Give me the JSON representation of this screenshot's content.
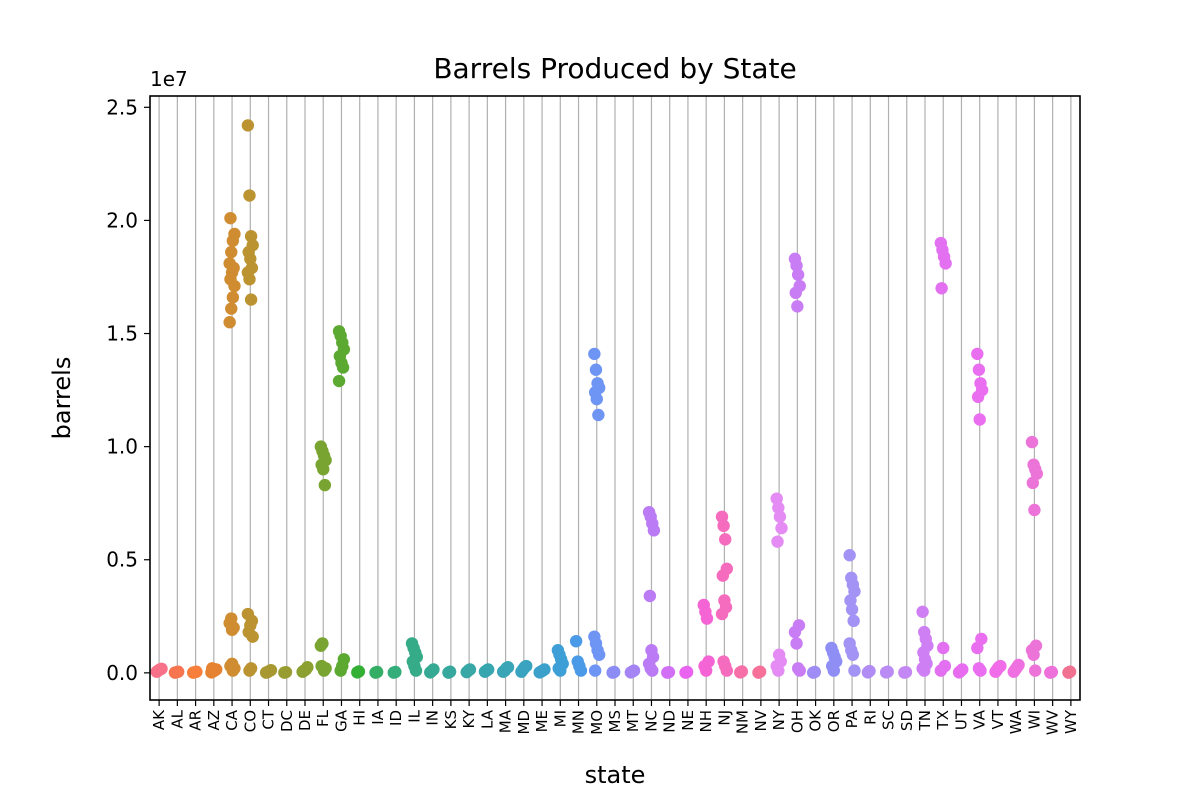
{
  "chart_data": {
    "type": "scatter",
    "title": "Barrels Produced by State",
    "xlabel": "state",
    "ylabel": "barrels",
    "y_offset_label": "1e7",
    "ylim": [
      -1200000,
      25500000
    ],
    "yticks": [
      0,
      5000000,
      10000000,
      15000000,
      20000000,
      25000000
    ],
    "ytick_labels": [
      "0.0",
      "0.5",
      "1.0",
      "1.5",
      "2.0",
      "2.5"
    ],
    "grid": "x-only",
    "categories": [
      "AK",
      "AL",
      "AR",
      "AZ",
      "CA",
      "CO",
      "CT",
      "DC",
      "DE",
      "FL",
      "GA",
      "HI",
      "IA",
      "ID",
      "IL",
      "IN",
      "KS",
      "KY",
      "LA",
      "MA",
      "MD",
      "ME",
      "MI",
      "MN",
      "MO",
      "MS",
      "MT",
      "NC",
      "ND",
      "NE",
      "NH",
      "NJ",
      "NM",
      "NV",
      "NY",
      "OH",
      "OK",
      "OR",
      "PA",
      "RI",
      "SC",
      "SD",
      "TN",
      "TX",
      "UT",
      "VA",
      "VT",
      "WA",
      "WI",
      "WV",
      "WY"
    ],
    "colors": [
      "#f77189",
      "#f7754f",
      "#f77f3b",
      "#e68332",
      "#d08c31",
      "#bb9331",
      "#a79831",
      "#999c31",
      "#8ba031",
      "#79a432",
      "#5ca932",
      "#33b034",
      "#34ae64",
      "#35ad7a",
      "#36ab88",
      "#36a994",
      "#37a89d",
      "#38a7a6",
      "#38a6ae",
      "#39a5b6",
      "#3aa3c0",
      "#3ba1ca",
      "#3d9fd6",
      "#4b9ae8",
      "#6e94f4",
      "#8c8df4",
      "#a584f4",
      "#bb7bf4",
      "#d170f4",
      "#ea63f0",
      "#f564d4",
      "#f56bbd",
      "#f66fa8",
      "#f77099",
      "#e48cf4",
      "#c97df4",
      "#9f8cf4",
      "#8f8ef4",
      "#a393f4",
      "#b08cf4",
      "#ba8bf4",
      "#c488f4",
      "#cf7ff4",
      "#e36ff1",
      "#e86cf0",
      "#ea6ef0",
      "#f06ce8",
      "#ef70e0",
      "#ec74d8",
      "#ee70da",
      "#f17190"
    ],
    "series": [
      {
        "name": "AK",
        "values": [
          50000,
          100000,
          150000,
          180000
        ]
      },
      {
        "name": "AL",
        "values": [
          10000,
          30000,
          50000
        ]
      },
      {
        "name": "AR",
        "values": [
          10000,
          30000,
          50000
        ]
      },
      {
        "name": "AZ",
        "values": [
          20000,
          60000,
          100000,
          150000,
          200000
        ]
      },
      {
        "name": "CA",
        "values": [
          15500000,
          16100000,
          16600000,
          17100000,
          17400000,
          17700000,
          17900000,
          18100000,
          18600000,
          19100000,
          19400000,
          20100000,
          1900000,
          2000000,
          2200000,
          2400000,
          100000,
          200000,
          300000,
          400000
        ]
      },
      {
        "name": "CO",
        "values": [
          24200000,
          21100000,
          19300000,
          18900000,
          18600000,
          18300000,
          17900000,
          17700000,
          17400000,
          16500000,
          1600000,
          1800000,
          2100000,
          2300000,
          2600000,
          100000,
          200000
        ]
      },
      {
        "name": "CT",
        "values": [
          10000,
          40000,
          80000,
          120000
        ]
      },
      {
        "name": "DC",
        "values": [
          10000,
          30000
        ]
      },
      {
        "name": "DE",
        "values": [
          50000,
          100000,
          150000,
          250000
        ]
      },
      {
        "name": "FL",
        "values": [
          10000000,
          9800000,
          9600000,
          9400000,
          9200000,
          9000000,
          8300000,
          1200000,
          1300000,
          100000,
          200000,
          300000
        ]
      },
      {
        "name": "GA",
        "values": [
          15100000,
          14900000,
          14600000,
          14300000,
          14000000,
          13700000,
          13500000,
          12900000,
          100000,
          300000,
          600000
        ]
      },
      {
        "name": "HI",
        "values": [
          20000,
          60000
        ]
      },
      {
        "name": "IA",
        "values": [
          10000,
          40000
        ]
      },
      {
        "name": "ID",
        "values": [
          10000,
          40000
        ]
      },
      {
        "name": "IL",
        "values": [
          1300000,
          1100000,
          900000,
          700000,
          500000,
          300000,
          100000
        ]
      },
      {
        "name": "IN",
        "values": [
          20000,
          80000,
          150000
        ]
      },
      {
        "name": "KS",
        "values": [
          10000,
          50000
        ]
      },
      {
        "name": "KY",
        "values": [
          30000,
          100000,
          150000
        ]
      },
      {
        "name": "LA",
        "values": [
          50000,
          100000,
          150000
        ]
      },
      {
        "name": "MA",
        "values": [
          50000,
          100000,
          200000,
          250000
        ]
      },
      {
        "name": "MD",
        "values": [
          50000,
          150000,
          250000,
          300000
        ]
      },
      {
        "name": "ME",
        "values": [
          20000,
          60000,
          100000,
          150000
        ]
      },
      {
        "name": "MI",
        "values": [
          1000000,
          800000,
          600000,
          400000,
          200000,
          100000
        ]
      },
      {
        "name": "MN",
        "values": [
          1400000,
          500000,
          300000,
          100000
        ]
      },
      {
        "name": "MO",
        "values": [
          14100000,
          13400000,
          12800000,
          12600000,
          12400000,
          12100000,
          11400000,
          1600000,
          1300000,
          1000000,
          800000,
          100000
        ]
      },
      {
        "name": "MS",
        "values": [
          10000,
          40000
        ]
      },
      {
        "name": "MT",
        "values": [
          20000,
          60000,
          100000
        ]
      },
      {
        "name": "NC",
        "values": [
          7100000,
          6900000,
          6600000,
          6300000,
          3400000,
          1000000,
          700000,
          400000,
          200000,
          100000
        ]
      },
      {
        "name": "ND",
        "values": [
          10000,
          30000
        ]
      },
      {
        "name": "NE",
        "values": [
          10000,
          40000
        ]
      },
      {
        "name": "NH",
        "values": [
          3000000,
          2700000,
          2400000,
          500000,
          300000,
          100000
        ]
      },
      {
        "name": "NJ",
        "values": [
          6900000,
          6500000,
          5900000,
          4600000,
          4300000,
          3200000,
          2900000,
          2600000,
          500000,
          300000,
          100000
        ]
      },
      {
        "name": "NM",
        "values": [
          20000,
          60000
        ]
      },
      {
        "name": "NV",
        "values": [
          10000,
          50000
        ]
      },
      {
        "name": "NY",
        "values": [
          7700000,
          7300000,
          6900000,
          6400000,
          5800000,
          800000,
          500000,
          300000,
          100000
        ]
      },
      {
        "name": "OH",
        "values": [
          18300000,
          18000000,
          17600000,
          17100000,
          16800000,
          16200000,
          2100000,
          1800000,
          1300000,
          200000,
          100000
        ]
      },
      {
        "name": "OK",
        "values": [
          10000,
          40000
        ]
      },
      {
        "name": "OR",
        "values": [
          1100000,
          900000,
          700000,
          500000,
          300000,
          100000
        ]
      },
      {
        "name": "PA",
        "values": [
          5200000,
          4200000,
          3900000,
          3600000,
          3200000,
          2800000,
          2300000,
          1300000,
          1000000,
          800000,
          100000
        ]
      },
      {
        "name": "RI",
        "values": [
          20000,
          80000
        ]
      },
      {
        "name": "SC",
        "values": [
          20000,
          50000
        ]
      },
      {
        "name": "SD",
        "values": [
          10000,
          30000
        ]
      },
      {
        "name": "TN",
        "values": [
          2700000,
          1800000,
          1500000,
          1200000,
          900000,
          600000,
          400000,
          200000,
          100000
        ]
      },
      {
        "name": "TX",
        "values": [
          19000000,
          18700000,
          18400000,
          18100000,
          17000000,
          1100000,
          300000,
          100000
        ]
      },
      {
        "name": "UT",
        "values": [
          20000,
          80000,
          150000
        ]
      },
      {
        "name": "VA",
        "values": [
          14100000,
          13400000,
          12800000,
          12500000,
          12200000,
          11200000,
          1500000,
          1100000,
          200000,
          100000
        ]
      },
      {
        "name": "VT",
        "values": [
          50000,
          150000,
          250000,
          300000
        ]
      },
      {
        "name": "WA",
        "values": [
          50000,
          150000,
          250000,
          350000
        ]
      },
      {
        "name": "WI",
        "values": [
          10200000,
          9200000,
          9000000,
          8800000,
          8400000,
          7200000,
          1200000,
          1000000,
          800000,
          100000
        ]
      },
      {
        "name": "WV",
        "values": [
          10000,
          40000
        ]
      },
      {
        "name": "WY",
        "values": [
          10000,
          50000
        ]
      }
    ]
  }
}
